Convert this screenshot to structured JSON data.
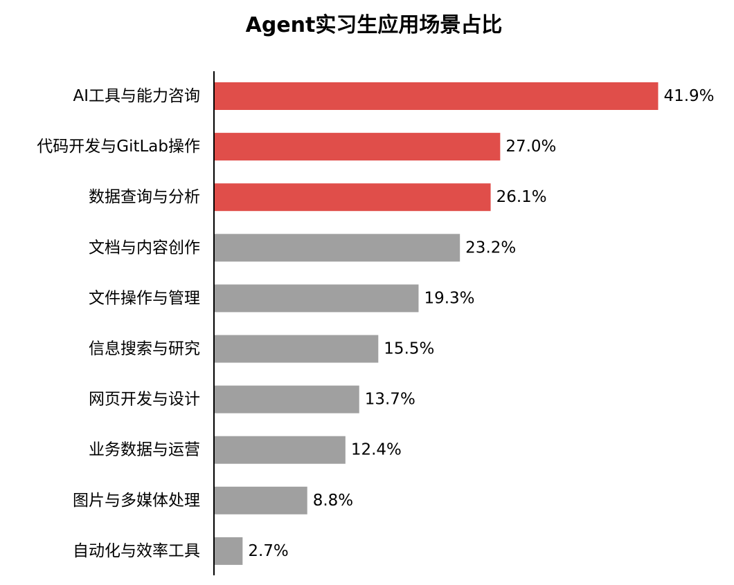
{
  "chart_data": {
    "type": "bar",
    "orientation": "horizontal",
    "title": "Agent实习生应用场景占比",
    "xlabel": "",
    "ylabel": "",
    "categories": [
      "AI工具与能力咨询",
      "代码开发与GitLab操作",
      "数据查询与分析",
      "文档与内容创作",
      "文件操作与管理",
      "信息搜索与研究",
      "网页开发与设计",
      "业务数据与运营",
      "图片与多媒体处理",
      "自动化与效率工具"
    ],
    "values": [
      41.9,
      27.0,
      26.1,
      23.2,
      19.3,
      15.5,
      13.7,
      12.4,
      8.8,
      2.7
    ],
    "value_labels": [
      "41.9%",
      "27.0%",
      "26.1%",
      "23.2%",
      "19.3%",
      "15.5%",
      "13.7%",
      "12.4%",
      "8.8%",
      "2.7%"
    ],
    "xlim": [
      0,
      42
    ],
    "grid": false,
    "legend": "none",
    "highlight_count": 3,
    "colors": {
      "highlight": "#e04e4a",
      "default": "#a0a0a0",
      "axis": "#000000",
      "text": "#000000"
    }
  }
}
